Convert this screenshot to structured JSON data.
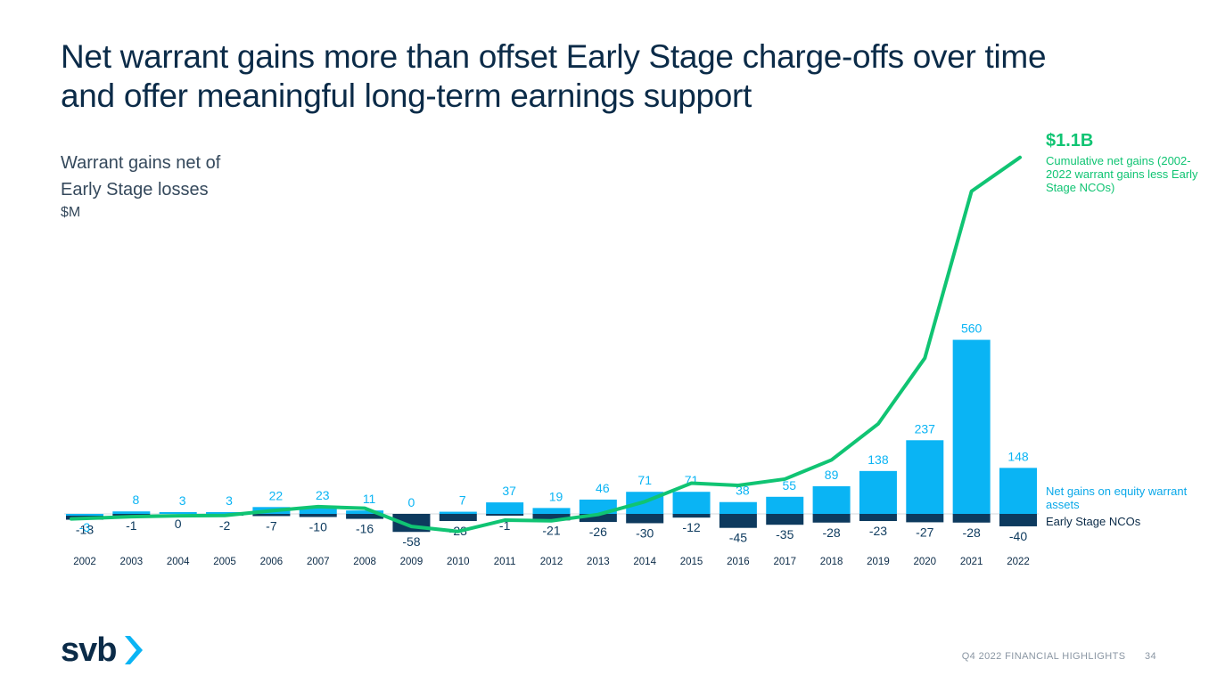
{
  "slide": {
    "title_lines": [
      "Net warrant gains more than offset Early Stage charge-offs over time",
      "and offer meaningful long-term earnings support"
    ],
    "subtitle_lines": [
      "Warrant gains net of",
      "Early Stage losses"
    ],
    "unit": "$M",
    "callout_value": "$1.1B",
    "callout_text": "Cumulative net gains (2002-2022 warrant gains less Early Stage NCOs)",
    "legend_gains": "Net gains on equity warrant assets",
    "legend_ncos": "Early Stage NCOs",
    "footer_label": "Q4 2022 FINANCIAL HIGHLIGHTS",
    "page_number": "34",
    "logo_text": "svb"
  },
  "colors": {
    "gains": "#0ab4f4",
    "ncos": "#0d3a5e",
    "cumulative": "#10c473",
    "title": "#0b2b48"
  },
  "chart_data": {
    "type": "bar",
    "categories": [
      "2002",
      "2003",
      "2004",
      "2005",
      "2006",
      "2007",
      "2008",
      "2009",
      "2010",
      "2011",
      "2012",
      "2013",
      "2014",
      "2015",
      "2016",
      "2017",
      "2018",
      "2019",
      "2020",
      "2021",
      "2022"
    ],
    "series": [
      {
        "name": "Net gains on equity warrant assets",
        "values": [
          -3,
          8,
          3,
          3,
          22,
          23,
          11,
          0,
          7,
          37,
          19,
          46,
          71,
          71,
          38,
          55,
          89,
          138,
          237,
          560,
          148
        ]
      },
      {
        "name": "Early Stage NCOs",
        "values": [
          -13,
          -1,
          0,
          -2,
          -7,
          -10,
          -16,
          -58,
          -23,
          -1,
          -21,
          -26,
          -30,
          -12,
          -45,
          -35,
          -28,
          -23,
          -27,
          -28,
          -40
        ]
      },
      {
        "name": "Cumulative net gains (2002-2022 warrant gains less Early Stage NCOs)",
        "type": "line",
        "values": [
          -16,
          -9,
          -6,
          -5,
          10,
          23,
          18,
          -40,
          -56,
          -20,
          -22,
          -2,
          39,
          98,
          91,
          111,
          172,
          287,
          497,
          1029,
          1137
        ]
      }
    ],
    "data_labels": {
      "gains": [
        "-3",
        "8",
        "3",
        "3",
        "22",
        "23",
        "11",
        "0",
        "7",
        "37",
        "19",
        "46",
        "71",
        "71",
        "38",
        "55",
        "89",
        "138",
        "237",
        "560",
        "148"
      ],
      "ncos": [
        "-13",
        "-1",
        "0",
        "-2",
        "-7",
        "-10",
        "-16",
        "-58",
        "-23",
        "-1",
        "-21",
        "-26",
        "-30",
        "-12",
        "-45",
        "-35",
        "-28",
        "-23",
        "-27",
        "-28",
        "-40"
      ]
    },
    "grid": false
  }
}
